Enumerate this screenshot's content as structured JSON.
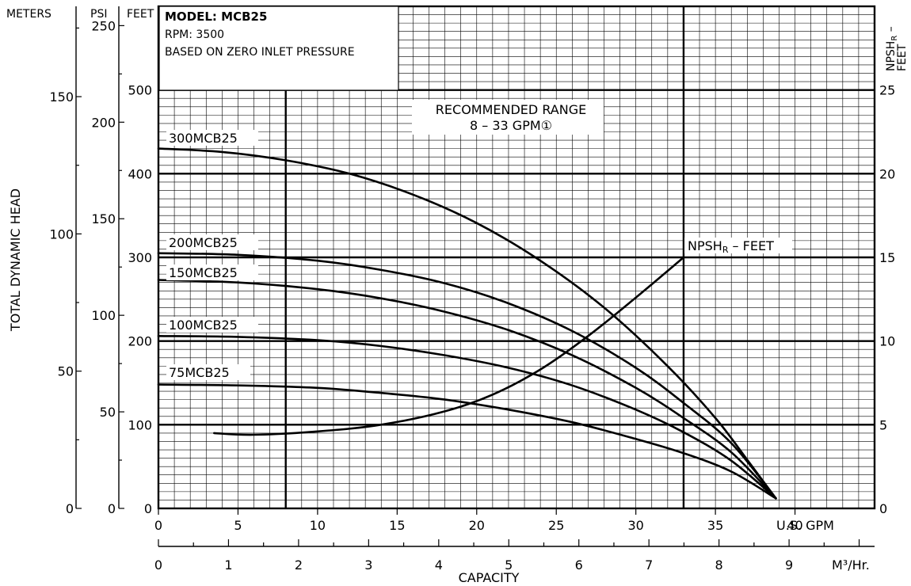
{
  "chart_data": {
    "type": "line",
    "info_box": {
      "model": "MODEL: MCB25",
      "rpm": "RPM: 3500",
      "basis": "BASED ON ZERO INLET PRESSURE"
    },
    "y_label": "TOTAL DYNAMIC HEAD",
    "x_label": "CAPACITY",
    "axis_headers": {
      "meters": "METERS",
      "psi": "PSI",
      "feet": "FEET",
      "npsh_line1": "NPSH",
      "npsh_sub": "R",
      "npsh_dash": " –",
      "npsh_line2": "FEET"
    },
    "x_gpm": {
      "unit": "U.S. GPM",
      "range": [
        0,
        45
      ],
      "ticks": [
        "0",
        "5",
        "10",
        "15",
        "20",
        "25",
        "30",
        "35",
        "40"
      ]
    },
    "x_m3hr": {
      "unit": "M³/Hr.",
      "range": [
        0,
        10.22
      ],
      "ticks": [
        "0",
        "1",
        "2",
        "3",
        "4",
        "5",
        "6",
        "7",
        "8",
        "9"
      ]
    },
    "y_feet": {
      "range": [
        0,
        600
      ],
      "ticks": [
        "0",
        "100",
        "200",
        "300",
        "400",
        "500"
      ]
    },
    "y_meters": {
      "range": [
        0,
        182.9
      ],
      "ticks": [
        "0",
        "50",
        "100",
        "150"
      ]
    },
    "y_psi": {
      "range": [
        0,
        260
      ],
      "ticks": [
        "0",
        "50",
        "100",
        "150",
        "200",
        "250"
      ]
    },
    "y_npsh": {
      "range": [
        0,
        30
      ],
      "ticks": [
        "0",
        "5",
        "10",
        "15",
        "20",
        "25"
      ]
    },
    "recommended_range": {
      "line1": "RECOMMENDED RANGE",
      "line2": "8 – 33 GPM",
      "marker": "①",
      "from_gpm": 8,
      "to_gpm": 33
    },
    "series": [
      {
        "name": "300MCB25",
        "axis": "feet",
        "points": [
          [
            0,
            430
          ],
          [
            4,
            426
          ],
          [
            8,
            416
          ],
          [
            12,
            400
          ],
          [
            16,
            375
          ],
          [
            20,
            341
          ],
          [
            24,
            296
          ],
          [
            28,
            240
          ],
          [
            32,
            170
          ],
          [
            35,
            108
          ],
          [
            37,
            58
          ],
          [
            38.8,
            12
          ]
        ]
      },
      {
        "name": "200MCB25",
        "axis": "feet",
        "points": [
          [
            0,
            305
          ],
          [
            5,
            303
          ],
          [
            10,
            296
          ],
          [
            14,
            285
          ],
          [
            18,
            269
          ],
          [
            22,
            245
          ],
          [
            26,
            212
          ],
          [
            30,
            168
          ],
          [
            33,
            126
          ],
          [
            36,
            78
          ],
          [
            38.8,
            12
          ]
        ]
      },
      {
        "name": "150MCB25",
        "axis": "feet",
        "points": [
          [
            0,
            273
          ],
          [
            5,
            270
          ],
          [
            10,
            262
          ],
          [
            14,
            251
          ],
          [
            18,
            235
          ],
          [
            22,
            213
          ],
          [
            26,
            183
          ],
          [
            30,
            144
          ],
          [
            33,
            108
          ],
          [
            36,
            67
          ],
          [
            38.8,
            12
          ]
        ]
      },
      {
        "name": "100MCB25",
        "axis": "feet",
        "points": [
          [
            0,
            206
          ],
          [
            5,
            205
          ],
          [
            10,
            201
          ],
          [
            14,
            194
          ],
          [
            18,
            183
          ],
          [
            22,
            168
          ],
          [
            26,
            147
          ],
          [
            30,
            118
          ],
          [
            33,
            91
          ],
          [
            36,
            57
          ],
          [
            38.8,
            12
          ]
        ]
      },
      {
        "name": "75MCB25",
        "axis": "feet",
        "points": [
          [
            0,
            148
          ],
          [
            5,
            147
          ],
          [
            10,
            144
          ],
          [
            14,
            138
          ],
          [
            18,
            130
          ],
          [
            22,
            118
          ],
          [
            26,
            103
          ],
          [
            30,
            83
          ],
          [
            33,
            66
          ],
          [
            36,
            44
          ],
          [
            38.8,
            12
          ]
        ]
      },
      {
        "name": "NPSHR – FEET",
        "label_main": "NPSH",
        "label_sub": "R",
        "label_rest": " – FEET",
        "axis": "npsh",
        "points": [
          [
            3.5,
            4.5
          ],
          [
            6,
            4.4
          ],
          [
            10,
            4.6
          ],
          [
            14,
            5.0
          ],
          [
            18,
            5.8
          ],
          [
            21,
            6.8
          ],
          [
            24,
            8.3
          ],
          [
            27,
            10.3
          ],
          [
            30,
            12.6
          ],
          [
            33,
            15
          ]
        ]
      }
    ]
  }
}
